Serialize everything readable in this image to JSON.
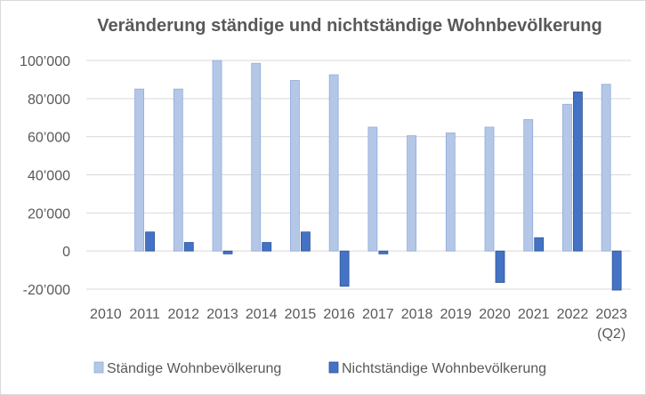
{
  "chart_data": {
    "type": "bar",
    "title": "Veränderung ständige und nichtständige Wohnbevölkerung",
    "categories": [
      "2010",
      "2011",
      "2012",
      "2013",
      "2014",
      "2015",
      "2016",
      "2017",
      "2018",
      "2019",
      "2020",
      "2021",
      "2022",
      "2023"
    ],
    "category_sublabels": [
      "",
      "",
      "",
      "",
      "",
      "",
      "",
      "",
      "",
      "",
      "",
      "",
      "",
      "(Q2)"
    ],
    "series": [
      {
        "name": "Ständige Wohnbevölkerung",
        "color": "#b4c7e7",
        "values": [
          null,
          85000,
          85000,
          100000,
          98500,
          89500,
          92500,
          65000,
          60500,
          62000,
          65000,
          69000,
          77000,
          87500
        ]
      },
      {
        "name": "Nichtständige Wohnbevölkerung",
        "color": "#4472c4",
        "values": [
          null,
          10000,
          4500,
          -1500,
          4500,
          10000,
          -18500,
          -1500,
          null,
          null,
          -16500,
          7000,
          83500,
          -20500
        ]
      }
    ],
    "ylim": [
      -20000,
      100000
    ],
    "yticks": [
      -20000,
      0,
      20000,
      40000,
      60000,
      80000,
      100000
    ],
    "ytick_labels": [
      "-20’000",
      "0",
      "20’000",
      "40’000",
      "60’000",
      "80’000",
      "100’000"
    ],
    "xlabel": "",
    "ylabel": "",
    "grid": "horizontal",
    "legend_position": "bottom"
  }
}
